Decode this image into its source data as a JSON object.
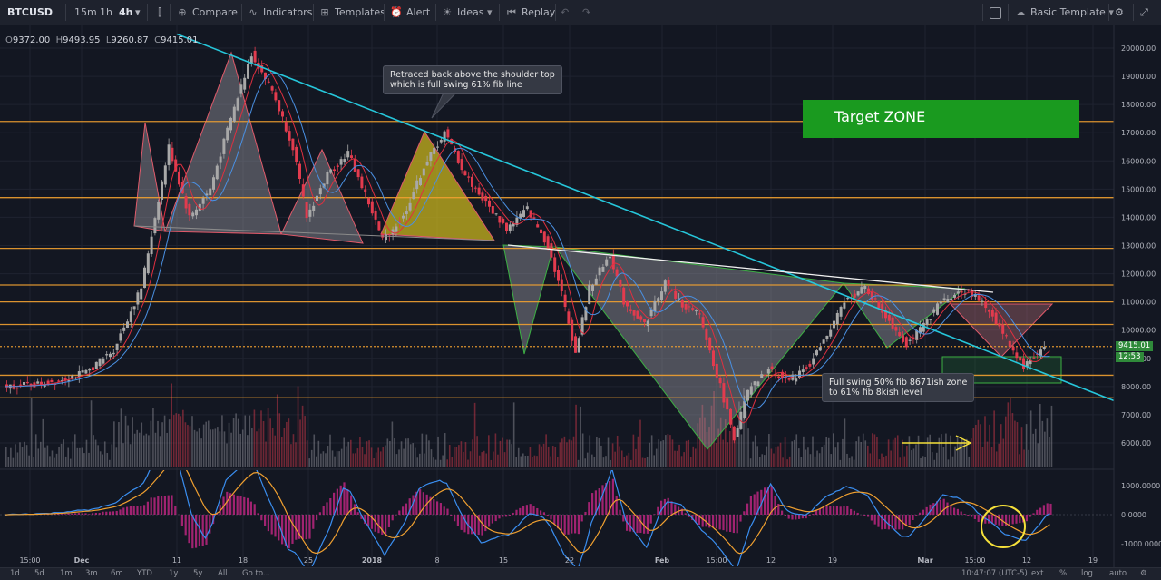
{
  "toolbar": {
    "symbol": "BTCUSD",
    "intervals": [
      "15m",
      "1h",
      "4h"
    ],
    "compare": "Compare",
    "indicators": "Indicators",
    "templates": "Templates",
    "alert": "Alert",
    "ideas": "Ideas",
    "replay": "Replay",
    "basic_template": "Basic Template"
  },
  "ohlc": {
    "o_label": "O",
    "o": "9372.00",
    "h_label": "H",
    "h": "9493.95",
    "l_label": "L",
    "l": "9260.87",
    "c_label": "C",
    "c": "9415.01"
  },
  "annotations": {
    "callout_top": [
      "Retraced back above the shoulder top",
      "which is full swing 61% fib line"
    ],
    "callout_bottom": [
      "Full swing 50% fib 8671ish zone",
      "to 61% fib 8kish level"
    ],
    "target_zone": "Target ZONE"
  },
  "price_tags": {
    "last": "9415.01",
    "countdown": "12:53"
  },
  "bottom_bar": {
    "ranges": [
      "1d",
      "5d",
      "1m",
      "3m",
      "6m",
      "YTD",
      "1y",
      "5y",
      "All",
      "Go to..."
    ],
    "time": "10:47:07 (UTC-5)",
    "opts": [
      "ext",
      "%",
      "log",
      "auto"
    ]
  },
  "colors": {
    "background": "#131722",
    "up_candle": "#a8a8a8",
    "down_candle": "#e23b4e",
    "trendline": "#26c6da",
    "horizontal": "#f0a030",
    "target": "#1a9a1f"
  },
  "chart_data": [
    {
      "type": "candlestick",
      "symbol": "BTCUSD",
      "interval": "4h",
      "x_ticks": [
        "15:00",
        "Dec",
        "11",
        "18",
        "25",
        "2018",
        "8",
        "15",
        "22",
        "Feb",
        "15:00",
        "12",
        "19",
        "Mar",
        "15:00",
        "12",
        "19"
      ],
      "y_ticks": [
        20000,
        19000,
        18000,
        17000,
        16000,
        15000,
        14000,
        13000,
        12000,
        11000,
        10000,
        9000,
        8000,
        7000,
        6000
      ],
      "ylim": [
        5100,
        20500
      ],
      "price_path": [
        [
          0,
          8000
        ],
        [
          3,
          8100
        ],
        [
          6,
          8500
        ],
        [
          8,
          9300
        ],
        [
          10,
          11500
        ],
        [
          12,
          16500
        ],
        [
          13.5,
          14000
        ],
        [
          15,
          15000
        ],
        [
          16.5,
          17500
        ],
        [
          18,
          19800
        ],
        [
          19.5,
          18500
        ],
        [
          21,
          16500
        ],
        [
          22,
          14000
        ],
        [
          23.5,
          15500
        ],
        [
          25,
          16300
        ],
        [
          26.5,
          14500
        ],
        [
          27.5,
          13200
        ],
        [
          29,
          14000
        ],
        [
          30.5,
          15800
        ],
        [
          32,
          17000
        ],
        [
          33.5,
          15500
        ],
        [
          35,
          14500
        ],
        [
          36.5,
          13600
        ],
        [
          38,
          14300
        ],
        [
          39.5,
          13000
        ],
        [
          40.5,
          11300
        ],
        [
          41.5,
          9200
        ],
        [
          42.5,
          11500
        ],
        [
          44,
          12700
        ],
        [
          45,
          11000
        ],
        [
          46.5,
          10200
        ],
        [
          48,
          11700
        ],
        [
          49,
          11000
        ],
        [
          50.5,
          10500
        ],
        [
          52,
          8000
        ],
        [
          53,
          6200
        ],
        [
          54,
          7800
        ],
        [
          55.5,
          8600
        ],
        [
          57,
          8200
        ],
        [
          58.5,
          8800
        ],
        [
          60,
          10000
        ],
        [
          61,
          11000
        ],
        [
          62.5,
          11500
        ],
        [
          64,
          10500
        ],
        [
          65.5,
          9500
        ],
        [
          66.5,
          10000
        ],
        [
          68,
          11000
        ],
        [
          69,
          11300
        ],
        [
          70,
          11400
        ],
        [
          71.5,
          10700
        ],
        [
          73,
          9500
        ],
        [
          74,
          8700
        ],
        [
          75.5,
          9400
        ]
      ],
      "horizontal_levels": [
        17400,
        14700,
        12900,
        11600,
        11000,
        10200,
        9420,
        8400,
        7600
      ],
      "descending_trendline": [
        [
          20500,
          7500
        ]
      ],
      "last_price": 9415.01
    },
    {
      "type": "line",
      "indicator": "MACD",
      "y_ticks": [
        1000,
        0,
        -1000
      ],
      "ylim": [
        -1200,
        1300
      ]
    }
  ]
}
